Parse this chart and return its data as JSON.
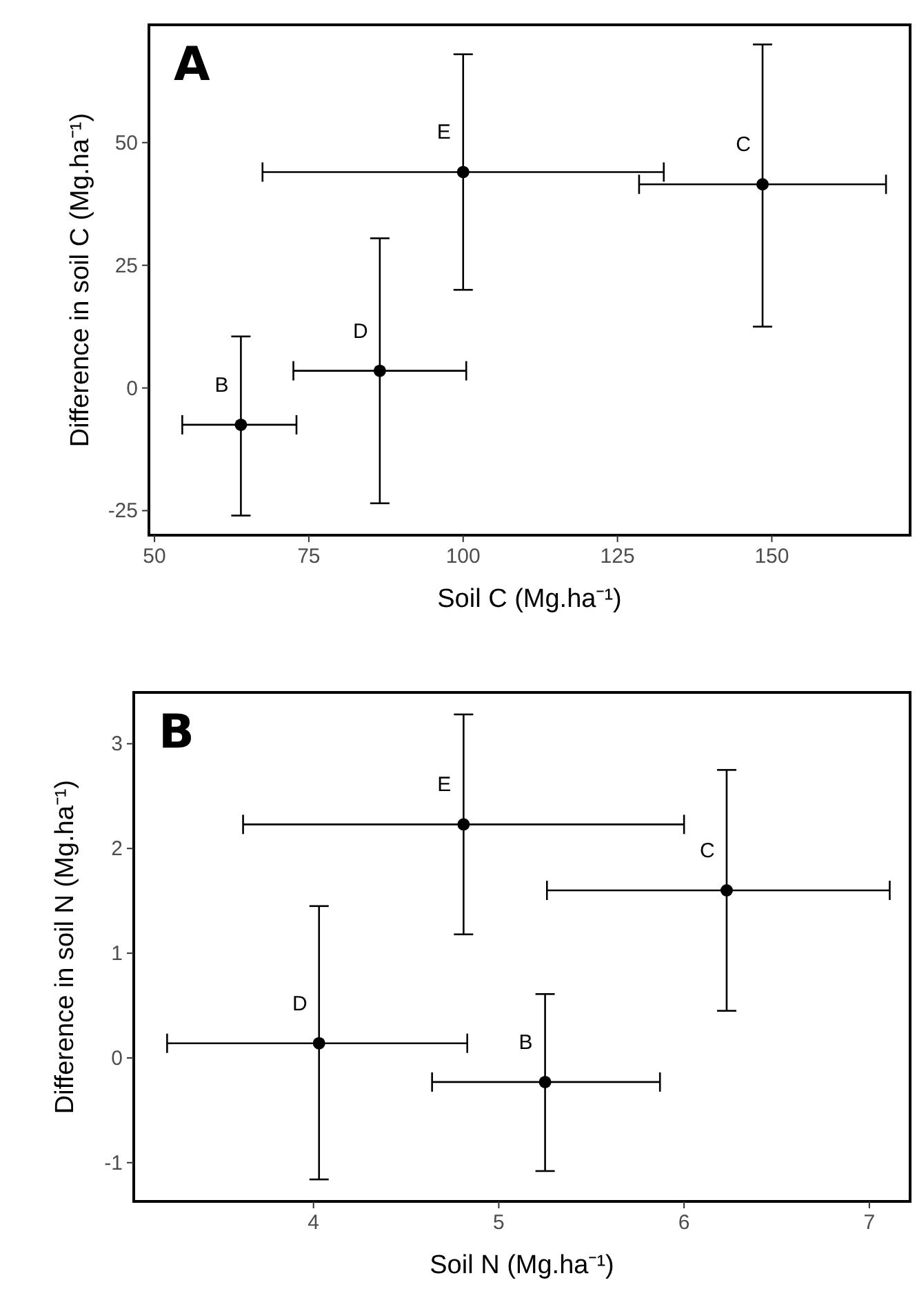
{
  "chart_data": [
    {
      "type": "scatter",
      "title": "A",
      "xlabel": "Soil C (Mg.ha⁻¹)",
      "ylabel": "Difference in soil C (Mg.ha⁻¹)",
      "xlim": [
        49.1,
        172.4
      ],
      "ylim": [
        -30,
        74
      ],
      "xticks": [
        50,
        75,
        100,
        125,
        150
      ],
      "yticks": [
        -25,
        0,
        25,
        50
      ],
      "grid": false,
      "marker": "circle",
      "series": [
        {
          "color": "#000000",
          "x": [
            64,
            86.5,
            100,
            148.5
          ],
          "values": [
            -7.5,
            3.5,
            44,
            41.5
          ],
          "errors": [
            [
              -26,
              10.5
            ],
            [
              -23.5,
              30.5
            ],
            [
              20,
              68
            ],
            [
              12.5,
              70
            ]
          ],
          "xerrors": [
            [
              54.5,
              73
            ],
            [
              72.5,
              100.5
            ],
            [
              67.5,
              132.5
            ],
            [
              128.5,
              168.5
            ]
          ]
        }
      ],
      "annotations": [
        {
          "text": "B",
          "x": 64,
          "y": -7.5
        },
        {
          "text": "D",
          "x": 86.5,
          "y": 3.5
        },
        {
          "text": "E",
          "x": 100,
          "y": 44
        },
        {
          "text": "C",
          "x": 148.5,
          "y": 41.5
        }
      ]
    },
    {
      "type": "scatter",
      "title": "B",
      "xlabel": "Soil N (Mg.ha⁻¹)",
      "ylabel": "Difference in soil N (Mg.ha⁻¹)",
      "xlim": [
        3.03,
        7.22
      ],
      "ylim": [
        -1.37,
        3.49
      ],
      "xticks": [
        4,
        5,
        6,
        7
      ],
      "yticks": [
        -1,
        0,
        1,
        2,
        3
      ],
      "grid": false,
      "marker": "circle",
      "series": [
        {
          "color": "#000000",
          "x": [
            4.81,
            6.23,
            4.03,
            5.25
          ],
          "values": [
            2.23,
            1.6,
            0.14,
            -0.23
          ],
          "errors": [
            [
              1.18,
              3.28
            ],
            [
              0.45,
              2.75
            ],
            [
              -1.16,
              1.45
            ],
            [
              -1.08,
              0.61
            ]
          ],
          "xerrors": [
            [
              3.62,
              6.0
            ],
            [
              5.26,
              7.11
            ],
            [
              3.21,
              4.83
            ],
            [
              4.64,
              5.87
            ]
          ]
        }
      ],
      "annotations": [
        {
          "text": "E",
          "x": 4.81,
          "y": 2.23
        },
        {
          "text": "C",
          "x": 6.23,
          "y": 1.6
        },
        {
          "text": "D",
          "x": 4.03,
          "y": 0.14
        },
        {
          "text": "B",
          "x": 5.25,
          "y": -0.23
        }
      ]
    }
  ]
}
